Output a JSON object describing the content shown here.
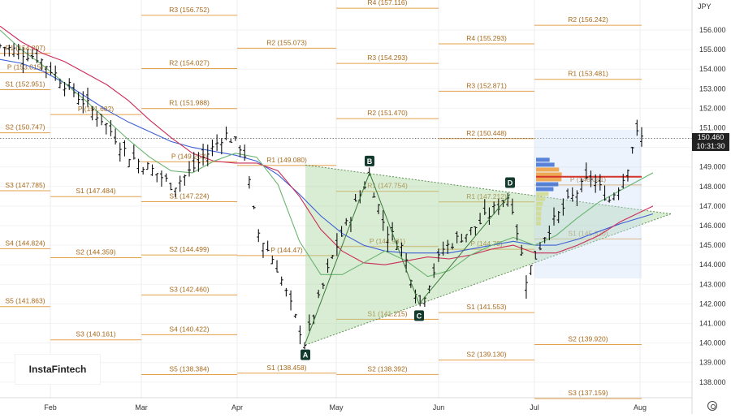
{
  "chart_data": {
    "type": "candlestick",
    "currency": "JPY",
    "ylim": [
      137.3,
      157.6
    ],
    "x_ticks": [
      "Feb",
      "Mar",
      "Apr",
      "May",
      "Jun",
      "Jul",
      "Aug"
    ],
    "y_ticks": [
      "138.000",
      "139.000",
      "140.000",
      "141.000",
      "142.000",
      "143.000",
      "144.000",
      "145.000",
      "146.000",
      "147.000",
      "148.000",
      "149.000",
      "150.000",
      "151.000",
      "152.000",
      "153.000",
      "154.000",
      "155.000",
      "156.000"
    ],
    "last_price": "150.460",
    "countdown": "10:31:30",
    "pivot_levels": [
      {
        "label": "R1 (154.807)",
        "value": 154.807,
        "period": "Feb"
      },
      {
        "label": "P (153.815)",
        "value": 153.815,
        "period": "Feb"
      },
      {
        "label": "S1 (152.951)",
        "value": 152.951,
        "period": "Feb"
      },
      {
        "label": "S2 (150.747)",
        "value": 150.747,
        "period": "Feb"
      },
      {
        "label": "S3 (147.785)",
        "value": 147.785,
        "period": "Feb"
      },
      {
        "label": "S4 (144.824)",
        "value": 144.824,
        "period": "Feb"
      },
      {
        "label": "S5 (141.863)",
        "value": 141.863,
        "period": "Feb"
      },
      {
        "label": "P (151.682)",
        "value": 151.682,
        "period": "Mar"
      },
      {
        "label": "S1 (147.484)",
        "value": 147.484,
        "period": "Mar"
      },
      {
        "label": "S2 (144.359)",
        "value": 144.359,
        "period": "Mar"
      },
      {
        "label": "S3 (140.161)",
        "value": 140.161,
        "period": "Mar"
      },
      {
        "label": "R3 (156.752)",
        "value": 156.752,
        "period": "Apr"
      },
      {
        "label": "R2 (154.027)",
        "value": 154.027,
        "period": "Apr"
      },
      {
        "label": "R1 (151.988)",
        "value": 151.988,
        "period": "Apr"
      },
      {
        "label": "P (149.263)",
        "value": 149.263,
        "period": "Apr"
      },
      {
        "label": "S1 (147.224)",
        "value": 147.224,
        "period": "Apr"
      },
      {
        "label": "S2 (144.499)",
        "value": 144.499,
        "period": "Apr"
      },
      {
        "label": "S3 (142.460)",
        "value": 142.46,
        "period": "Apr"
      },
      {
        "label": "S4 (140.422)",
        "value": 140.422,
        "period": "Apr"
      },
      {
        "label": "S5 (138.384)",
        "value": 138.384,
        "period": "Apr"
      },
      {
        "label": "R2 (155.073)",
        "value": 155.073,
        "period": "May"
      },
      {
        "label": "R1 (149.080)",
        "value": 149.08,
        "period": "May"
      },
      {
        "label": "P (144.47)",
        "value": 144.47,
        "period": "May"
      },
      {
        "label": "S1 (138.458)",
        "value": 138.458,
        "period": "May"
      },
      {
        "label": "R4 (157.116)",
        "value": 157.116,
        "period": "Jun"
      },
      {
        "label": "R3 (154.293)",
        "value": 154.293,
        "period": "Jun"
      },
      {
        "label": "R2 (151.470)",
        "value": 151.47,
        "period": "Jun"
      },
      {
        "label": "R1 (147.754)",
        "value": 147.754,
        "period": "Jun"
      },
      {
        "label": "P (144.931)",
        "value": 144.931,
        "period": "Jun"
      },
      {
        "label": "S1 (141.215)",
        "value": 141.215,
        "period": "Jun"
      },
      {
        "label": "S2 (138.392)",
        "value": 138.392,
        "period": "Jun"
      },
      {
        "label": "R4 (155.293)",
        "value": 155.293,
        "period": "Jul"
      },
      {
        "label": "R3 (152.871)",
        "value": 152.871,
        "period": "Jul"
      },
      {
        "label": "R2 (150.448)",
        "value": 150.448,
        "period": "Jul"
      },
      {
        "label": "R1 (147.212)",
        "value": 147.212,
        "period": "Jul"
      },
      {
        "label": "P (144.79)",
        "value": 144.79,
        "period": "Jul"
      },
      {
        "label": "S1 (141.553)",
        "value": 141.553,
        "period": "Jul"
      },
      {
        "label": "S2 (139.130)",
        "value": 139.13,
        "period": "Jul"
      },
      {
        "label": "R2 (156.242)",
        "value": 156.242,
        "period": "Aug"
      },
      {
        "label": "R1 (153.481)",
        "value": 153.481,
        "period": "Aug"
      },
      {
        "label": "P (148.081)",
        "value": 148.081,
        "period": "Aug"
      },
      {
        "label": "S1 (145.320)",
        "value": 145.32,
        "period": "Aug"
      },
      {
        "label": "S2 (139.920)",
        "value": 139.92,
        "period": "Aug"
      },
      {
        "label": "S3 (137.159)",
        "value": 137.159,
        "period": "Aug"
      }
    ],
    "pattern_points": [
      {
        "label": "A",
        "value": 140.0
      },
      {
        "label": "B",
        "value": 148.7
      },
      {
        "label": "C",
        "value": 142.0
      },
      {
        "label": "D",
        "value": 147.6
      }
    ],
    "moving_averages": [
      {
        "color": "#3d5fd6",
        "values": [
          154.5,
          154.3,
          153.9,
          153.3,
          152.6,
          151.9,
          151.3,
          150.8,
          150.3,
          150.0,
          149.8,
          149.6,
          149.3,
          148.6,
          147.6,
          146.5,
          145.6,
          145.0,
          144.7,
          144.6,
          144.6,
          144.6,
          144.8,
          145.0,
          145.2,
          145.0,
          145.0,
          145.3,
          145.7,
          146.1,
          146.6
        ]
      },
      {
        "color": "#cc2b58",
        "values": [
          156.2,
          155.4,
          154.8,
          154.4,
          153.8,
          153.2,
          152.4,
          151.4,
          150.5,
          149.7,
          149.3,
          149.2,
          149.2,
          148.8,
          147.5,
          145.8,
          144.7,
          144.1,
          144.0,
          144.2,
          144.4,
          144.3,
          144.5,
          144.8,
          145.0,
          144.6,
          144.6,
          145.0,
          145.5,
          146.2,
          147.0
        ]
      },
      {
        "color": "#6ab46f",
        "values": [
          156.0,
          155.0,
          154.2,
          153.3,
          152.4,
          151.4,
          150.4,
          149.5,
          148.8,
          148.7,
          149.3,
          149.7,
          149.5,
          148.1,
          145.2,
          143.5,
          143.5,
          144.1,
          144.7,
          144.2,
          143.4,
          143.7,
          144.5,
          145.0,
          145.4,
          145.0,
          145.5,
          146.4,
          147.2,
          147.8,
          148.7
        ]
      }
    ],
    "volume_profile": {
      "poc": 148.5
    }
  }
}
